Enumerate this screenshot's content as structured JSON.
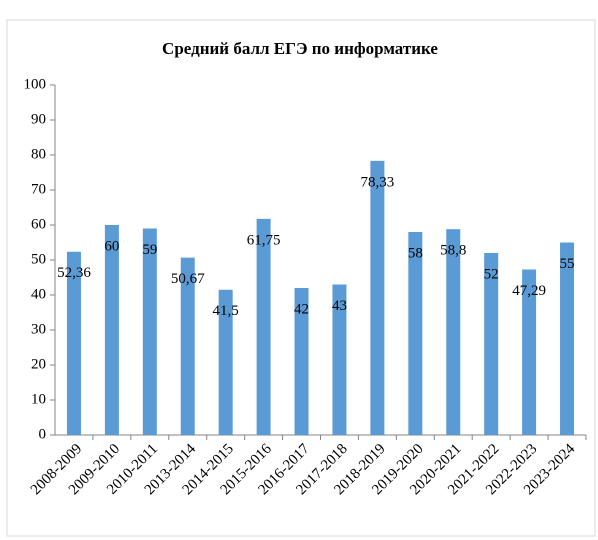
{
  "chart_data": {
    "type": "bar",
    "title": "Средний балл ЕГЭ по информатике",
    "categories": [
      "2008-2009",
      "2009-2010",
      "2010-2011",
      "2013-2014",
      "2014-2015",
      "2015-2016",
      "2016-2017",
      "2017-2018",
      "2018-2019",
      "2019-2020",
      "2020-2021",
      "2021-2022",
      "2022-2023",
      "2023-2024"
    ],
    "values": [
      52.36,
      60,
      59,
      50.67,
      41.5,
      61.75,
      42,
      43,
      78.33,
      58,
      58.8,
      52,
      47.29,
      55
    ],
    "value_labels": [
      "52,36",
      "60",
      "59",
      "50,67",
      "41,5",
      "61,75",
      "42",
      "43",
      "78,33",
      "58",
      "58,8",
      "52",
      "47,29",
      "55"
    ],
    "color": "#5b9bd5",
    "ylim": [
      0,
      100
    ],
    "yticks": [
      0,
      10,
      20,
      30,
      40,
      50,
      60,
      70,
      80,
      90,
      100
    ],
    "grid": false
  }
}
